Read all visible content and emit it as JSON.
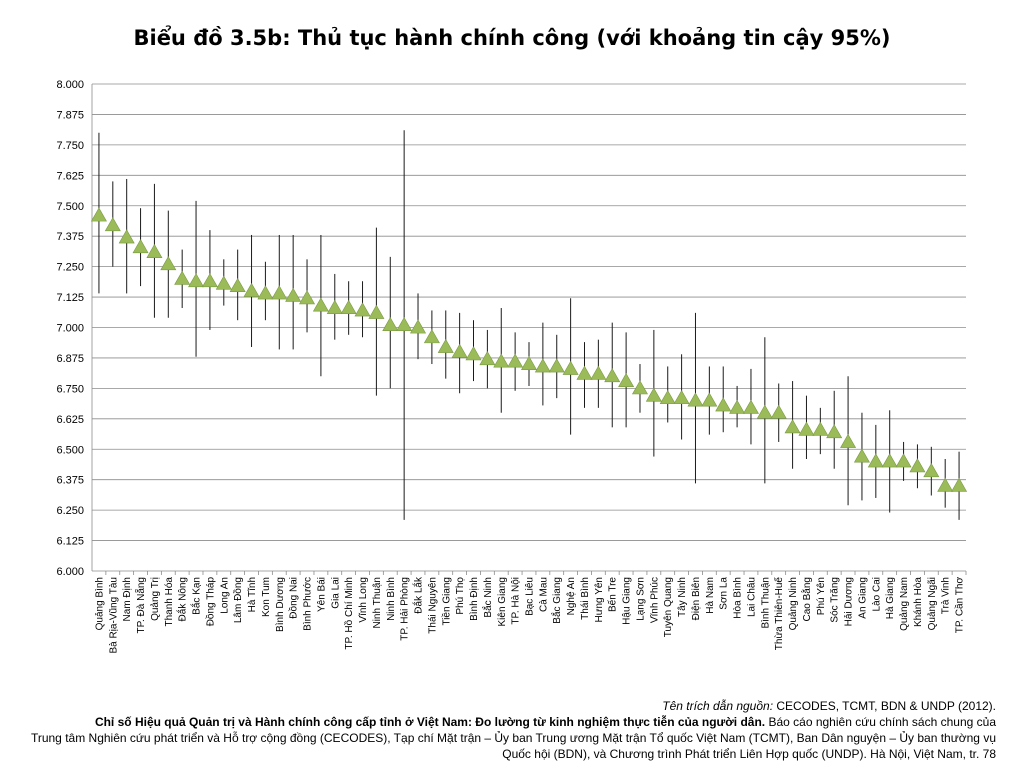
{
  "chart_data": {
    "type": "scatter",
    "title": "Biểu đồ 3.5b: Thủ tục hành chính công (với khoảng tin cậy 95%)",
    "ylim": [
      6.0,
      8.0
    ],
    "yticks": [
      "6.000",
      "6.125",
      "6.250",
      "6.375",
      "6.500",
      "6.625",
      "6.750",
      "6.875",
      "7.000",
      "7.125",
      "7.250",
      "7.375",
      "7.500",
      "7.625",
      "7.750",
      "7.875",
      "8.000"
    ],
    "grid": true,
    "marker": "triangle",
    "marker_color": "#9bbb59",
    "categories": [
      "Quảng Bình",
      "Bà Rịa-Vũng Tàu",
      "Nam Định",
      "TP. Đà Nẵng",
      "Quảng Trị",
      "Thanh Hóa",
      "Đắk Nông",
      "Bắc Kạn",
      "Đồng Tháp",
      "Long An",
      "Lâm Đồng",
      "Hà Tĩnh",
      "Kon Tum",
      "Bình Dương",
      "Đồng Nai",
      "Bình Phước",
      "Yên Bái",
      "Gia Lai",
      "TP. Hồ Chí Minh",
      "Vĩnh Long",
      "Ninh Thuận",
      "Ninh Bình",
      "TP. Hải Phòng",
      "Đắk Lắk",
      "Thái Nguyên",
      "Tiền Giang",
      "Phú Thọ",
      "Bình Định",
      "Bắc Ninh",
      "Kiên Giang",
      "TP. Hà Nội",
      "Bạc Liêu",
      "Cà Mau",
      "Bắc Giang",
      "Nghệ An",
      "Thái Bình",
      "Hưng Yên",
      "Bến Tre",
      "Hậu Giang",
      "Lạng Sơn",
      "Vĩnh Phúc",
      "Tuyên Quang",
      "Tây Ninh",
      "Điện Biên",
      "Hà Nam",
      "Sơn La",
      "Hòa Bình",
      "Lai Châu",
      "Bình Thuận",
      "Thừa Thiên-Huế",
      "Quảng Ninh",
      "Cao Bằng",
      "Phú Yên",
      "Sóc Trăng",
      "Hải Dương",
      "An Giang",
      "Lào Cai",
      "Hà Giang",
      "Quảng Nam",
      "Khánh Hòa",
      "Quảng Ngãi",
      "Trà Vinh",
      "TP. Cần Thơ"
    ],
    "values": [
      7.46,
      7.42,
      7.37,
      7.33,
      7.31,
      7.26,
      7.2,
      7.19,
      7.19,
      7.18,
      7.17,
      7.15,
      7.14,
      7.14,
      7.13,
      7.12,
      7.09,
      7.08,
      7.08,
      7.07,
      7.06,
      7.01,
      7.01,
      7.0,
      6.96,
      6.92,
      6.9,
      6.89,
      6.87,
      6.86,
      6.86,
      6.85,
      6.84,
      6.84,
      6.83,
      6.81,
      6.81,
      6.8,
      6.78,
      6.75,
      6.72,
      6.71,
      6.71,
      6.7,
      6.7,
      6.68,
      6.67,
      6.67,
      6.65,
      6.65,
      6.59,
      6.58,
      6.58,
      6.57,
      6.53,
      6.47,
      6.45,
      6.45,
      6.45,
      6.43,
      6.41,
      6.35,
      6.35
    ],
    "ci_low": [
      7.14,
      7.25,
      7.14,
      7.17,
      7.04,
      7.04,
      7.08,
      6.88,
      6.99,
      7.09,
      7.03,
      6.92,
      7.03,
      6.91,
      6.91,
      6.98,
      6.8,
      6.95,
      6.97,
      6.96,
      6.72,
      6.75,
      6.21,
      6.87,
      6.85,
      6.79,
      6.73,
      6.78,
      6.75,
      6.65,
      6.74,
      6.76,
      6.68,
      6.71,
      6.56,
      6.67,
      6.67,
      6.59,
      6.59,
      6.65,
      6.47,
      6.61,
      6.54,
      6.36,
      6.56,
      6.57,
      6.59,
      6.52,
      6.36,
      6.53,
      6.42,
      6.46,
      6.48,
      6.42,
      6.27,
      6.29,
      6.3,
      6.24,
      6.37,
      6.34,
      6.31,
      6.26,
      6.21
    ],
    "ci_high": [
      7.8,
      7.6,
      7.61,
      7.49,
      7.59,
      7.48,
      7.32,
      7.52,
      7.4,
      7.28,
      7.32,
      7.38,
      7.27,
      7.38,
      7.38,
      7.28,
      7.38,
      7.22,
      7.19,
      7.19,
      7.41,
      7.29,
      7.81,
      7.14,
      7.07,
      7.07,
      7.06,
      7.03,
      6.99,
      7.08,
      6.98,
      6.94,
      7.02,
      6.97,
      7.12,
      6.94,
      6.95,
      7.02,
      6.98,
      6.85,
      6.99,
      6.84,
      6.89,
      7.06,
      6.84,
      6.84,
      6.76,
      6.83,
      6.96,
      6.77,
      6.78,
      6.72,
      6.67,
      6.74,
      6.8,
      6.65,
      6.6,
      6.66,
      6.53,
      6.52,
      6.51,
      6.46,
      6.49
    ]
  },
  "source": {
    "citation_label": "Tên trích dẫn nguồn:",
    "citation_authors": "CECODES, TCMT, BDN & UNDP (2012).",
    "report_title": "Chỉ số Hiệu quả Quản trị và Hành chính công cấp tỉnh ở Việt Nam: Đo lường từ kinh nghiệm thực tiễn của người dân.",
    "report_desc_1": "Báo cáo nghiên cứu chính sách chung của",
    "report_desc_2": "Trung tâm Nghiên cứu phát triển và Hỗ trợ cộng đồng (CECODES), Tạp chí Mặt trận – Ủy ban Trung ương Mặt trận Tổ quốc Việt Nam (TCMT), Ban Dân nguyện – Ủy ban thường vụ Quốc hội (BDN), và Chương trình Phát triển Liên Hợp quốc (UNDP). Hà Nội, Việt Nam, tr. 78"
  }
}
